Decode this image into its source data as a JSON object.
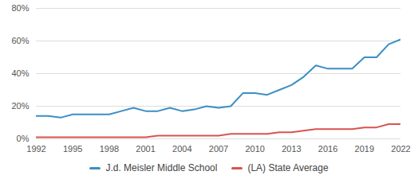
{
  "chart_data": {
    "type": "line",
    "x": [
      1992,
      1993,
      1994,
      1995,
      1996,
      1997,
      1998,
      1999,
      2000,
      2001,
      2002,
      2003,
      2004,
      2005,
      2006,
      2007,
      2008,
      2009,
      2010,
      2011,
      2012,
      2013,
      2014,
      2015,
      2016,
      2017,
      2018,
      2019,
      2020,
      2021,
      2022
    ],
    "series": [
      {
        "name": "J.d. Meisler Middle School",
        "color": "#3a8fc4",
        "values": [
          14,
          14,
          13,
          15,
          15,
          15,
          15,
          17,
          19,
          17,
          17,
          19,
          17,
          18,
          20,
          19,
          20,
          28,
          28,
          27,
          30,
          33,
          38,
          45,
          43,
          43,
          43,
          50,
          50,
          58,
          61
        ]
      },
      {
        "name": "(LA) State Average",
        "color": "#d9534f",
        "values": [
          1,
          1,
          1,
          1,
          1,
          1,
          1,
          1,
          1,
          1,
          2,
          2,
          2,
          2,
          2,
          2,
          3,
          3,
          3,
          3,
          4,
          4,
          5,
          6,
          6,
          6,
          6,
          7,
          7,
          9,
          9
        ]
      }
    ],
    "xlim": [
      1992,
      2022
    ],
    "xticks": [
      1992,
      1995,
      1998,
      2001,
      2004,
      2007,
      2010,
      2013,
      2016,
      2019,
      2022
    ],
    "ylim": [
      0,
      80
    ],
    "yticks": [
      {
        "value": 0,
        "label": "0%"
      },
      {
        "value": 20,
        "label": "20%"
      },
      {
        "value": 40,
        "label": "40%"
      },
      {
        "value": 60,
        "label": "60%"
      },
      {
        "value": 80,
        "label": "80%"
      }
    ],
    "grid": true,
    "legend": "bottom"
  }
}
